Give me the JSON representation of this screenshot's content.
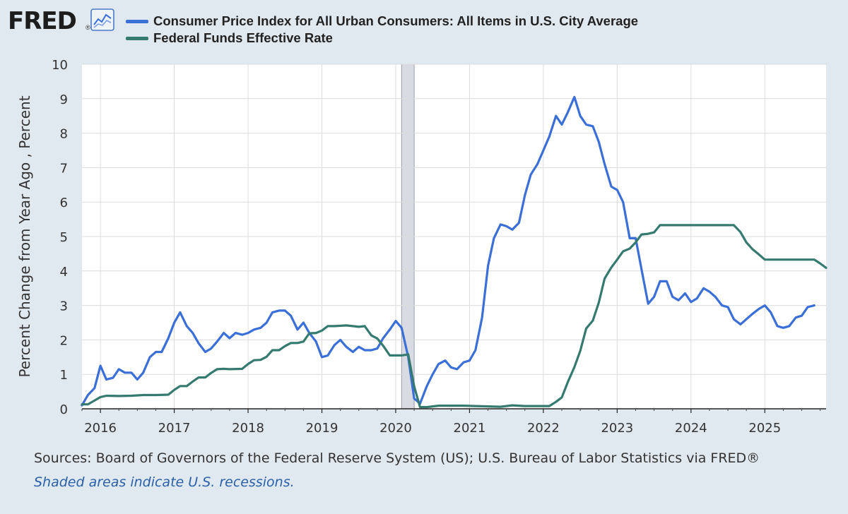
{
  "header": {
    "logo": "FRED",
    "logo_mark": "®"
  },
  "colors": {
    "cpi": "#3a6fd8",
    "fedfunds": "#347a6e",
    "recession": "#d8dbe2",
    "grid": "#dcdcdc",
    "background": "#e1e9f0",
    "plot": "#ffffff"
  },
  "footer": {
    "sources": "Sources: Board of Governors of the Federal Reserve System (US); U.S. Bureau of Labor Statistics via FRED®",
    "recession_note": "Shaded areas indicate U.S. recessions."
  },
  "chart_data": {
    "type": "line",
    "title": "",
    "ylabel": "Percent Change from Year Ago , Percent",
    "xlabel": "",
    "ylim": [
      0,
      10
    ],
    "xlim": [
      2015.75,
      2025.83
    ],
    "y_ticks": [
      0,
      1,
      2,
      3,
      4,
      5,
      6,
      7,
      8,
      9,
      10
    ],
    "x_ticks": [
      {
        "value": 2016,
        "label": "2016"
      },
      {
        "value": 2017,
        "label": "2017"
      },
      {
        "value": 2018,
        "label": "2018"
      },
      {
        "value": 2019,
        "label": "2019"
      },
      {
        "value": 2020,
        "label": "2020"
      },
      {
        "value": 2021,
        "label": "2021"
      },
      {
        "value": 2022,
        "label": "2022"
      },
      {
        "value": 2023,
        "label": "2023"
      },
      {
        "value": 2024,
        "label": "2024"
      },
      {
        "value": 2025,
        "label": "2025"
      }
    ],
    "grid": true,
    "legend_position": "top",
    "recessions": [
      {
        "start": 2020.08,
        "end": 2020.25
      }
    ],
    "series": [
      {
        "name": "Consumer Price Index for All Urban Consumers: All Items in U.S. City Average",
        "color_key": "cpi",
        "points": [
          [
            2015.75,
            0.1
          ],
          [
            2015.83,
            0.4
          ],
          [
            2015.92,
            0.6
          ],
          [
            2016.0,
            1.25
          ],
          [
            2016.08,
            0.85
          ],
          [
            2016.17,
            0.9
          ],
          [
            2016.25,
            1.15
          ],
          [
            2016.33,
            1.05
          ],
          [
            2016.42,
            1.05
          ],
          [
            2016.5,
            0.85
          ],
          [
            2016.58,
            1.05
          ],
          [
            2016.67,
            1.5
          ],
          [
            2016.75,
            1.65
          ],
          [
            2016.83,
            1.65
          ],
          [
            2016.92,
            2.05
          ],
          [
            2017.0,
            2.5
          ],
          [
            2017.08,
            2.8
          ],
          [
            2017.17,
            2.4
          ],
          [
            2017.25,
            2.2
          ],
          [
            2017.33,
            1.9
          ],
          [
            2017.42,
            1.65
          ],
          [
            2017.5,
            1.75
          ],
          [
            2017.58,
            1.95
          ],
          [
            2017.67,
            2.2
          ],
          [
            2017.75,
            2.05
          ],
          [
            2017.83,
            2.2
          ],
          [
            2017.92,
            2.15
          ],
          [
            2018.0,
            2.2
          ],
          [
            2018.08,
            2.3
          ],
          [
            2018.17,
            2.35
          ],
          [
            2018.25,
            2.5
          ],
          [
            2018.33,
            2.8
          ],
          [
            2018.42,
            2.85
          ],
          [
            2018.5,
            2.85
          ],
          [
            2018.58,
            2.7
          ],
          [
            2018.67,
            2.3
          ],
          [
            2018.75,
            2.5
          ],
          [
            2018.83,
            2.2
          ],
          [
            2018.92,
            1.95
          ],
          [
            2019.0,
            1.5
          ],
          [
            2019.08,
            1.55
          ],
          [
            2019.17,
            1.85
          ],
          [
            2019.25,
            2.0
          ],
          [
            2019.33,
            1.8
          ],
          [
            2019.42,
            1.65
          ],
          [
            2019.5,
            1.8
          ],
          [
            2019.58,
            1.7
          ],
          [
            2019.67,
            1.7
          ],
          [
            2019.75,
            1.75
          ],
          [
            2019.83,
            2.05
          ],
          [
            2019.92,
            2.3
          ],
          [
            2020.0,
            2.55
          ],
          [
            2020.08,
            2.35
          ],
          [
            2020.17,
            1.5
          ],
          [
            2020.25,
            0.3
          ],
          [
            2020.33,
            0.15
          ],
          [
            2020.42,
            0.65
          ],
          [
            2020.5,
            1.0
          ],
          [
            2020.58,
            1.3
          ],
          [
            2020.67,
            1.4
          ],
          [
            2020.75,
            1.2
          ],
          [
            2020.83,
            1.15
          ],
          [
            2020.92,
            1.35
          ],
          [
            2021.0,
            1.4
          ],
          [
            2021.08,
            1.7
          ],
          [
            2021.17,
            2.65
          ],
          [
            2021.25,
            4.15
          ],
          [
            2021.33,
            4.95
          ],
          [
            2021.42,
            5.35
          ],
          [
            2021.5,
            5.3
          ],
          [
            2021.58,
            5.2
          ],
          [
            2021.67,
            5.4
          ],
          [
            2021.75,
            6.2
          ],
          [
            2021.83,
            6.8
          ],
          [
            2021.92,
            7.1
          ],
          [
            2022.0,
            7.5
          ],
          [
            2022.08,
            7.9
          ],
          [
            2022.17,
            8.5
          ],
          [
            2022.25,
            8.25
          ],
          [
            2022.33,
            8.6
          ],
          [
            2022.42,
            9.05
          ],
          [
            2022.5,
            8.5
          ],
          [
            2022.58,
            8.25
          ],
          [
            2022.67,
            8.2
          ],
          [
            2022.75,
            7.75
          ],
          [
            2022.83,
            7.1
          ],
          [
            2022.92,
            6.45
          ],
          [
            2023.0,
            6.35
          ],
          [
            2023.08,
            6.0
          ],
          [
            2023.17,
            4.95
          ],
          [
            2023.25,
            4.95
          ],
          [
            2023.33,
            4.05
          ],
          [
            2023.42,
            3.05
          ],
          [
            2023.5,
            3.25
          ],
          [
            2023.58,
            3.7
          ],
          [
            2023.67,
            3.7
          ],
          [
            2023.75,
            3.25
          ],
          [
            2023.83,
            3.15
          ],
          [
            2023.92,
            3.35
          ],
          [
            2024.0,
            3.1
          ],
          [
            2024.08,
            3.2
          ],
          [
            2024.17,
            3.5
          ],
          [
            2024.25,
            3.4
          ],
          [
            2024.33,
            3.25
          ],
          [
            2024.42,
            3.0
          ],
          [
            2024.5,
            2.95
          ],
          [
            2024.58,
            2.6
          ],
          [
            2024.67,
            2.45
          ],
          [
            2024.75,
            2.6
          ],
          [
            2024.83,
            2.75
          ],
          [
            2024.92,
            2.9
          ],
          [
            2025.0,
            3.0
          ],
          [
            2025.08,
            2.8
          ],
          [
            2025.17,
            2.4
          ],
          [
            2025.25,
            2.35
          ],
          [
            2025.33,
            2.4
          ],
          [
            2025.42,
            2.65
          ],
          [
            2025.5,
            2.7
          ],
          [
            2025.58,
            2.95
          ],
          [
            2025.67,
            3.0
          ]
        ]
      },
      {
        "name": "Federal Funds Effective Rate",
        "color_key": "fedfunds",
        "points": [
          [
            2015.75,
            0.13
          ],
          [
            2015.83,
            0.13
          ],
          [
            2015.92,
            0.24
          ],
          [
            2016.0,
            0.34
          ],
          [
            2016.08,
            0.38
          ],
          [
            2016.25,
            0.37
          ],
          [
            2016.42,
            0.38
          ],
          [
            2016.58,
            0.4
          ],
          [
            2016.75,
            0.4
          ],
          [
            2016.92,
            0.41
          ],
          [
            2017.0,
            0.55
          ],
          [
            2017.08,
            0.66
          ],
          [
            2017.17,
            0.66
          ],
          [
            2017.25,
            0.79
          ],
          [
            2017.33,
            0.91
          ],
          [
            2017.42,
            0.91
          ],
          [
            2017.5,
            1.04
          ],
          [
            2017.58,
            1.15
          ],
          [
            2017.67,
            1.16
          ],
          [
            2017.75,
            1.15
          ],
          [
            2017.92,
            1.16
          ],
          [
            2018.0,
            1.3
          ],
          [
            2018.08,
            1.41
          ],
          [
            2018.17,
            1.42
          ],
          [
            2018.25,
            1.51
          ],
          [
            2018.33,
            1.7
          ],
          [
            2018.42,
            1.7
          ],
          [
            2018.5,
            1.82
          ],
          [
            2018.58,
            1.91
          ],
          [
            2018.67,
            1.91
          ],
          [
            2018.75,
            1.95
          ],
          [
            2018.83,
            2.19
          ],
          [
            2018.92,
            2.2
          ],
          [
            2019.0,
            2.27
          ],
          [
            2019.08,
            2.4
          ],
          [
            2019.17,
            2.4
          ],
          [
            2019.25,
            2.41
          ],
          [
            2019.33,
            2.42
          ],
          [
            2019.42,
            2.4
          ],
          [
            2019.5,
            2.38
          ],
          [
            2019.58,
            2.4
          ],
          [
            2019.67,
            2.13
          ],
          [
            2019.75,
            2.04
          ],
          [
            2019.83,
            1.83
          ],
          [
            2019.92,
            1.55
          ],
          [
            2020.0,
            1.55
          ],
          [
            2020.08,
            1.55
          ],
          [
            2020.17,
            1.58
          ],
          [
            2020.25,
            0.65
          ],
          [
            2020.33,
            0.05
          ],
          [
            2020.42,
            0.05
          ],
          [
            2020.58,
            0.09
          ],
          [
            2020.75,
            0.09
          ],
          [
            2020.92,
            0.09
          ],
          [
            2021.08,
            0.08
          ],
          [
            2021.25,
            0.07
          ],
          [
            2021.42,
            0.06
          ],
          [
            2021.58,
            0.1
          ],
          [
            2021.75,
            0.08
          ],
          [
            2021.92,
            0.08
          ],
          [
            2022.08,
            0.08
          ],
          [
            2022.17,
            0.2
          ],
          [
            2022.25,
            0.33
          ],
          [
            2022.33,
            0.77
          ],
          [
            2022.42,
            1.21
          ],
          [
            2022.5,
            1.68
          ],
          [
            2022.58,
            2.33
          ],
          [
            2022.67,
            2.56
          ],
          [
            2022.75,
            3.08
          ],
          [
            2022.83,
            3.78
          ],
          [
            2022.92,
            4.1
          ],
          [
            2023.0,
            4.33
          ],
          [
            2023.08,
            4.57
          ],
          [
            2023.17,
            4.65
          ],
          [
            2023.25,
            4.83
          ],
          [
            2023.33,
            5.06
          ],
          [
            2023.42,
            5.08
          ],
          [
            2023.5,
            5.12
          ],
          [
            2023.58,
            5.33
          ],
          [
            2023.67,
            5.33
          ],
          [
            2023.83,
            5.33
          ],
          [
            2024.0,
            5.33
          ],
          [
            2024.17,
            5.33
          ],
          [
            2024.33,
            5.33
          ],
          [
            2024.5,
            5.33
          ],
          [
            2024.58,
            5.33
          ],
          [
            2024.67,
            5.13
          ],
          [
            2024.75,
            4.83
          ],
          [
            2024.83,
            4.64
          ],
          [
            2024.92,
            4.48
          ],
          [
            2025.0,
            4.33
          ],
          [
            2025.17,
            4.33
          ],
          [
            2025.33,
            4.33
          ],
          [
            2025.5,
            4.33
          ],
          [
            2025.67,
            4.33
          ],
          [
            2025.75,
            4.22
          ],
          [
            2025.83,
            4.09
          ]
        ]
      }
    ]
  }
}
